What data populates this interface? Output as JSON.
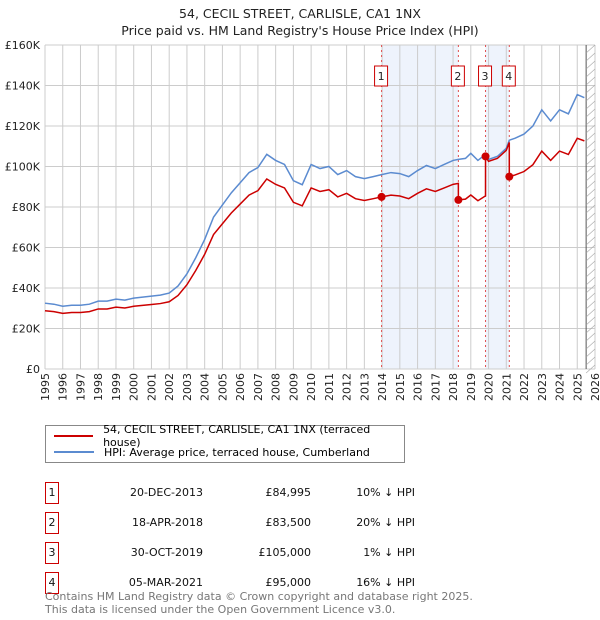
{
  "chart_data": {
    "type": "line",
    "title": "54, CECIL STREET, CARLISLE, CA1 1NX",
    "subtitle": "Price paid vs. HM Land Registry's House Price Index (HPI)",
    "xlim": [
      1995,
      2026
    ],
    "ylim": [
      0,
      160000
    ],
    "x_ticks": [
      "1995",
      "1996",
      "1997",
      "1998",
      "1999",
      "2000",
      "2001",
      "2002",
      "2003",
      "2004",
      "2005",
      "2006",
      "2007",
      "2008",
      "2009",
      "2010",
      "2011",
      "2012",
      "2013",
      "2014",
      "2015",
      "2016",
      "2017",
      "2018",
      "2019",
      "2020",
      "2021",
      "2022",
      "2023",
      "2024",
      "2025",
      "2026"
    ],
    "y_ticks": [
      "£0",
      "£20K",
      "£40K",
      "£60K",
      "£80K",
      "£100K",
      "£120K",
      "£140K",
      "£160K"
    ],
    "grid": true,
    "legend_placement": "below",
    "series": [
      {
        "name": "54, CECIL STREET, CARLISLE, CA1 1NX (terraced house)",
        "color": "#cc0000"
      },
      {
        "name": "HPI: Average price, terraced house, Cumberland",
        "color": "#5b8bd0",
        "x": [
          1995,
          1995.5,
          1996,
          1996.5,
          1997,
          1997.5,
          1998,
          1998.5,
          1999,
          1999.5,
          2000,
          2000.5,
          2001,
          2001.5,
          2002,
          2002.5,
          2003,
          2003.5,
          2004,
          2004.5,
          2005,
          2005.5,
          2006,
          2006.5,
          2007,
          2007.5,
          2008,
          2008.5,
          2009,
          2009.5,
          2010,
          2010.5,
          2011,
          2011.5,
          2012,
          2012.5,
          2013,
          2013.5,
          2013.97,
          2014.5,
          2015,
          2015.5,
          2016,
          2016.5,
          2017,
          2017.5,
          2018,
          2018.3,
          2018.7,
          2019,
          2019.4,
          2019.83,
          2020,
          2020.5,
          2021,
          2021.17,
          2021.5,
          2022,
          2022.5,
          2023,
          2023.5,
          2024,
          2024.5,
          2025,
          2025.4
        ],
        "values": [
          32500,
          32000,
          31000,
          31500,
          31500,
          32000,
          33500,
          33500,
          34500,
          34000,
          35000,
          35500,
          36000,
          36500,
          37500,
          41000,
          47000,
          55000,
          64000,
          75000,
          81000,
          87000,
          92000,
          97000,
          99500,
          106000,
          103000,
          101000,
          93000,
          91000,
          101000,
          99000,
          100000,
          96000,
          98000,
          95000,
          94000,
          95000,
          96000,
          97000,
          96500,
          95000,
          98000,
          100500,
          99000,
          101000,
          103000,
          103500,
          104000,
          106500,
          103000,
          106000,
          103500,
          105000,
          109000,
          113000,
          114000,
          116000,
          120000,
          128000,
          122500,
          128000,
          126000,
          135500,
          134000
        ]
      }
    ],
    "sales": [
      {
        "id": "1",
        "date": "20-DEC-2013",
        "x": 2013.97,
        "price": 84995,
        "price_label": "£84,995",
        "hpi_diff": "10% ↓ HPI"
      },
      {
        "id": "2",
        "date": "18-APR-2018",
        "x": 2018.3,
        "price": 83500,
        "price_label": "£83,500",
        "hpi_diff": "20% ↓ HPI"
      },
      {
        "id": "3",
        "date": "30-OCT-2019",
        "x": 2019.83,
        "price": 105000,
        "price_label": "£105,000",
        "hpi_diff": "1% ↓ HPI"
      },
      {
        "id": "4",
        "date": "05-MAR-2021",
        "x": 2021.17,
        "price": 95000,
        "price_label": "£95,000",
        "hpi_diff": "16% ↓ HPI"
      }
    ],
    "forecast_start": 2025.5
  },
  "footer": {
    "line1": "Contains HM Land Registry data © Crown copyright and database right 2025.",
    "line2": "This data is licensed under the Open Government Licence v3.0."
  }
}
